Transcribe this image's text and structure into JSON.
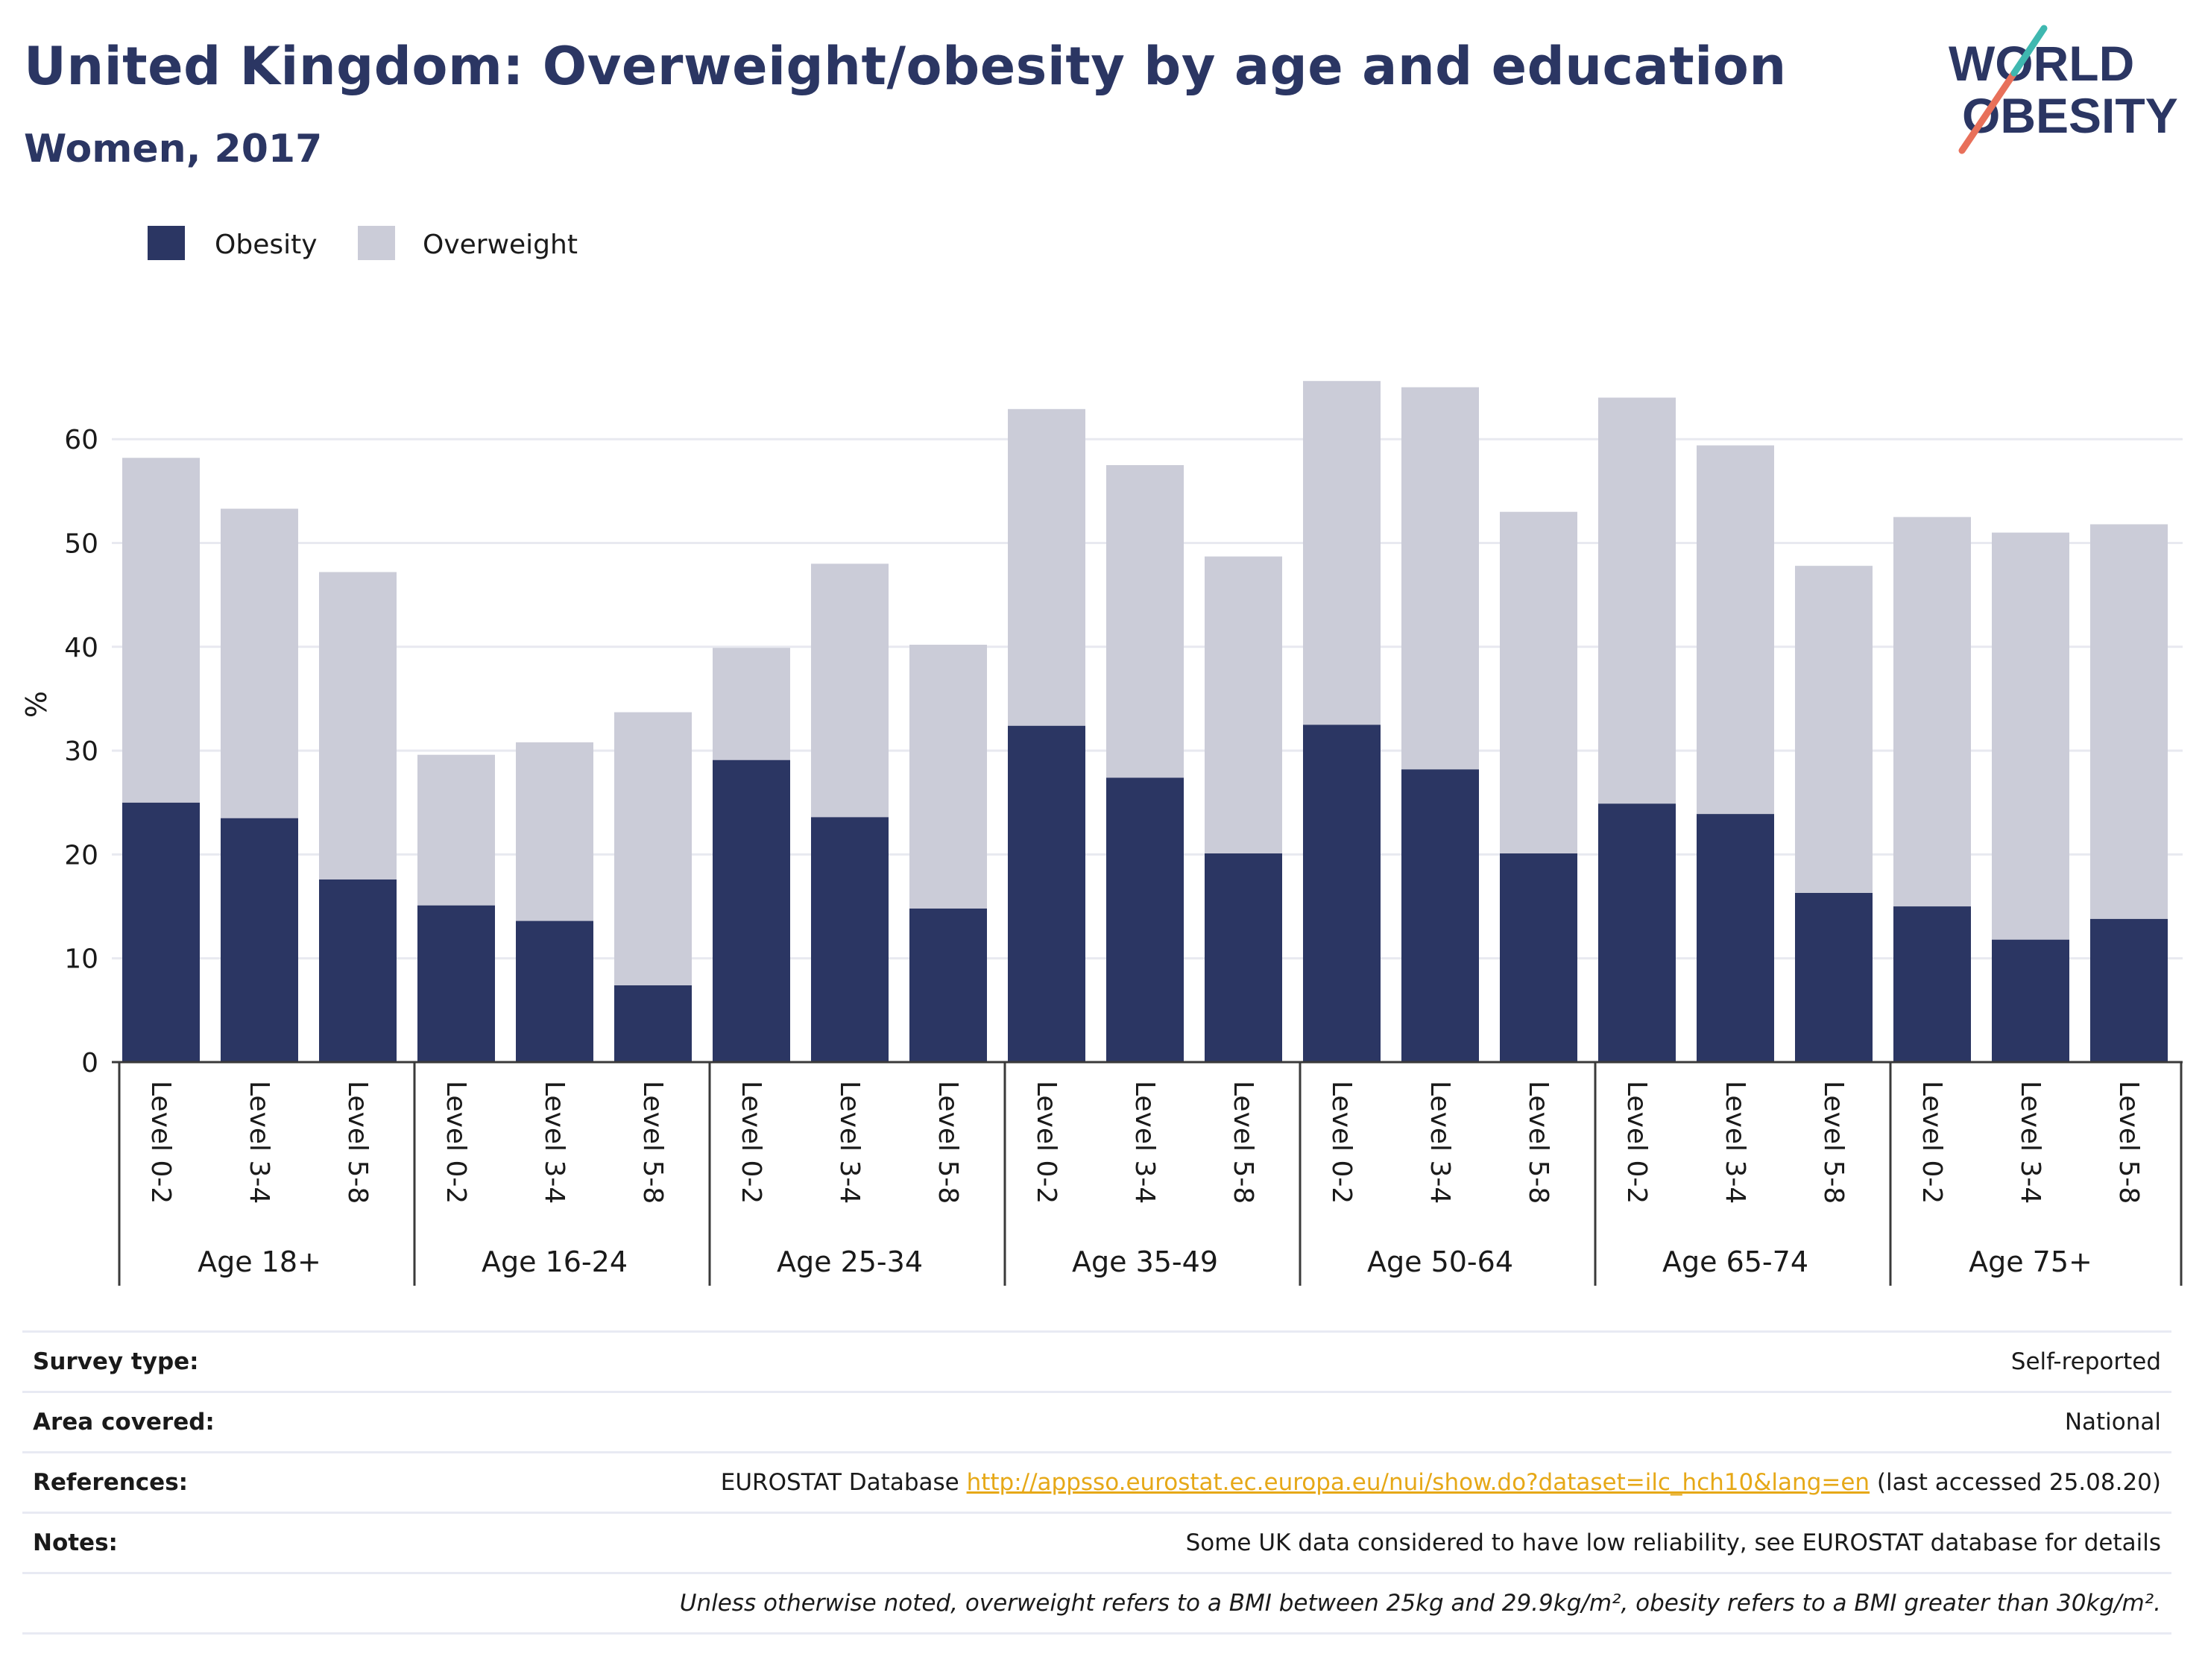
{
  "title": "United Kingdom: Overweight/obesity by age and education",
  "subtitle": "Women, 2017",
  "logo": {
    "line1": "WORLD",
    "line2": "OBESITY"
  },
  "colors": {
    "obesity": "#2b3663",
    "overweight": "#cbccd8",
    "title": "#2b3663",
    "logo_stroke1": "#e8705a",
    "logo_stroke2": "#3fb8b0"
  },
  "chart_data": {
    "type": "bar",
    "stacked": true,
    "ylabel": "%",
    "ylim": [
      0,
      70
    ],
    "yticks": [
      0,
      10,
      20,
      30,
      40,
      50,
      60
    ],
    "grid": true,
    "legend_position": "top-left",
    "groups": [
      "Age 18+",
      "Age 16-24",
      "Age 25-34",
      "Age 35-49",
      "Age 50-64",
      "Age 65-74",
      "Age 75+"
    ],
    "levels": [
      "Level 0-2",
      "Level 3-4",
      "Level 5-8"
    ],
    "series": [
      {
        "name": "Obesity",
        "color": "#2b3663",
        "values": [
          25.0,
          23.5,
          17.6,
          15.1,
          13.6,
          7.4,
          29.1,
          23.6,
          14.8,
          32.4,
          27.4,
          20.1,
          32.5,
          28.2,
          20.1,
          24.9,
          23.9,
          16.3,
          15.0,
          11.8,
          13.8
        ]
      },
      {
        "name": "Overweight",
        "color": "#cbccd8",
        "values": [
          33.2,
          29.8,
          29.6,
          14.5,
          17.2,
          26.3,
          10.8,
          24.4,
          25.4,
          30.5,
          30.1,
          28.6,
          33.1,
          36.8,
          32.9,
          39.1,
          35.5,
          31.5,
          37.5,
          39.2,
          38.0
        ]
      }
    ]
  },
  "info": {
    "survey_type_label": "Survey type:",
    "survey_type": "Self-reported",
    "area_label": "Area covered:",
    "area": "National",
    "references_label": "References:",
    "references_prefix": "EUROSTAT Database",
    "references_url": "http://appsso.eurostat.ec.europa.eu/nui/show.do?dataset=ilc_hch10&lang=en",
    "references_suffix": "(last accessed 25.08.20)",
    "notes_label": "Notes:",
    "notes": "Some UK data considered to have low reliability, see EUROSTAT database for details",
    "footnote": "Unless otherwise noted, overweight refers to a BMI between 25kg and 29.9kg/m², obesity refers to a BMI greater than 30kg/m²."
  }
}
